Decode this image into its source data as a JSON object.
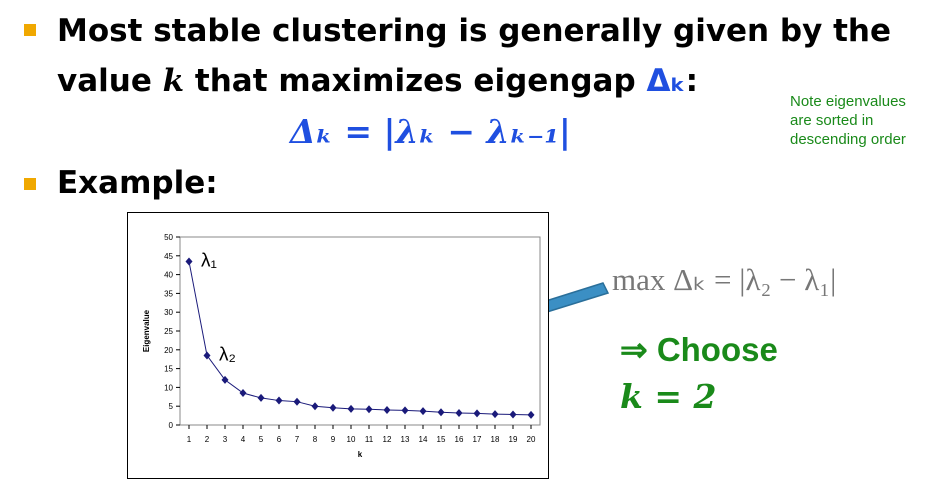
{
  "bullets": [
    {
      "lines": [
        [
          {
            "text": "Most stable clustering is generally given by the"
          }
        ],
        [
          {
            "text": "value "
          },
          {
            "text": "k",
            "style": "italic"
          },
          {
            "text": " that maximizes eigengap "
          },
          {
            "text": "Δₖ",
            "style": "blue"
          },
          {
            "text": ":"
          }
        ]
      ]
    },
    {
      "lines": [
        [
          {
            "text": "Example:"
          }
        ]
      ]
    }
  ],
  "formula": "Δₖ = |λₖ − λₖ₋₁|",
  "note": [
    "Note eigenvalues",
    "are sorted in",
    "descending order"
  ],
  "result": {
    "expression": "max Δₖ = |λ₂ − λ₁|",
    "choose": "⇒ Choose",
    "k": "k = 2"
  },
  "chart_data": {
    "type": "line",
    "x_label": "k",
    "y_label": "Eigenvalue",
    "x": [
      1,
      2,
      3,
      4,
      5,
      6,
      7,
      8,
      9,
      10,
      11,
      12,
      13,
      14,
      15,
      16,
      17,
      18,
      19,
      20
    ],
    "values": [
      43.5,
      18.5,
      12,
      8.5,
      7.2,
      6.5,
      6.2,
      5,
      4.6,
      4.3,
      4.2,
      4,
      3.9,
      3.7,
      3.4,
      3.2,
      3.1,
      2.9,
      2.8,
      2.7
    ],
    "color": "#1a1a7a",
    "xlim": [
      0.5,
      20.5
    ],
    "xticks": [
      1,
      2,
      3,
      4,
      5,
      6,
      7,
      8,
      9,
      10,
      11,
      12,
      13,
      14,
      15,
      16,
      17,
      18,
      19,
      20
    ],
    "ylim": [
      0,
      50
    ],
    "yticks": [
      0,
      5,
      10,
      15,
      20,
      25,
      30,
      35,
      40,
      45,
      50
    ],
    "annotations": [
      "λ₁",
      "λ₂"
    ]
  }
}
